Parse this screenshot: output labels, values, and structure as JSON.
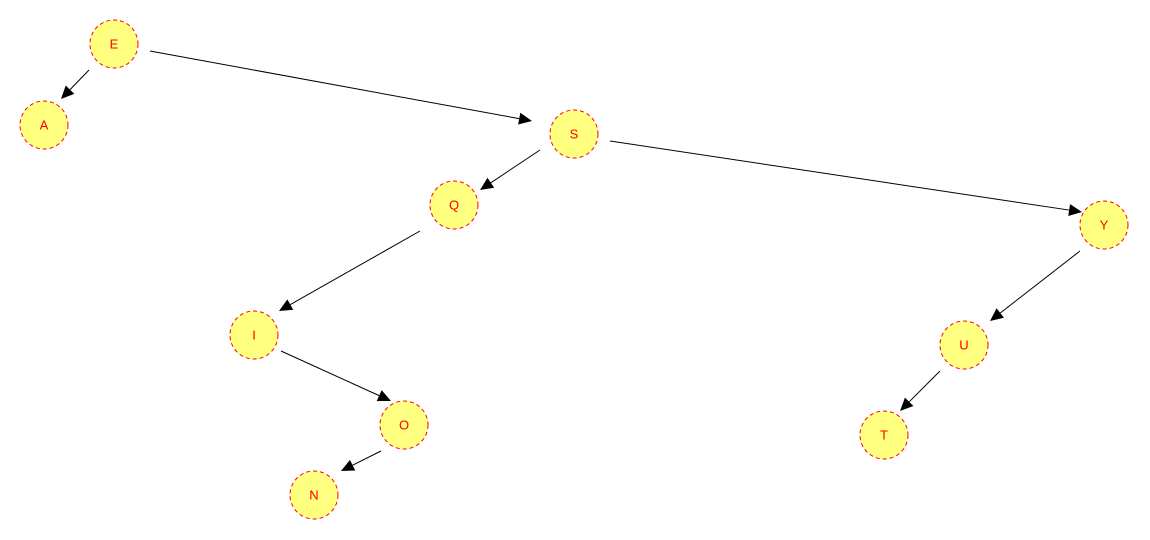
{
  "diagram": {
    "type": "binary-search-tree",
    "colors": {
      "node_fill": "#ffff80",
      "node_stroke": "#ff0000",
      "label": "#ff0000",
      "edge": "#000000"
    },
    "nodes": [
      {
        "id": "E",
        "label": "E"
      },
      {
        "id": "A",
        "label": "A"
      },
      {
        "id": "S",
        "label": "S"
      },
      {
        "id": "Q",
        "label": "Q"
      },
      {
        "id": "Y",
        "label": "Y"
      },
      {
        "id": "I",
        "label": "I"
      },
      {
        "id": "U",
        "label": "U"
      },
      {
        "id": "O",
        "label": "O"
      },
      {
        "id": "T",
        "label": "T"
      },
      {
        "id": "N",
        "label": "N"
      }
    ],
    "edges": [
      {
        "from": "E",
        "to": "A"
      },
      {
        "from": "E",
        "to": "S"
      },
      {
        "from": "S",
        "to": "Q"
      },
      {
        "from": "S",
        "to": "Y"
      },
      {
        "from": "Q",
        "to": "I"
      },
      {
        "from": "I",
        "to": "O"
      },
      {
        "from": "O",
        "to": "N"
      },
      {
        "from": "Y",
        "to": "U"
      },
      {
        "from": "U",
        "to": "T"
      }
    ]
  }
}
